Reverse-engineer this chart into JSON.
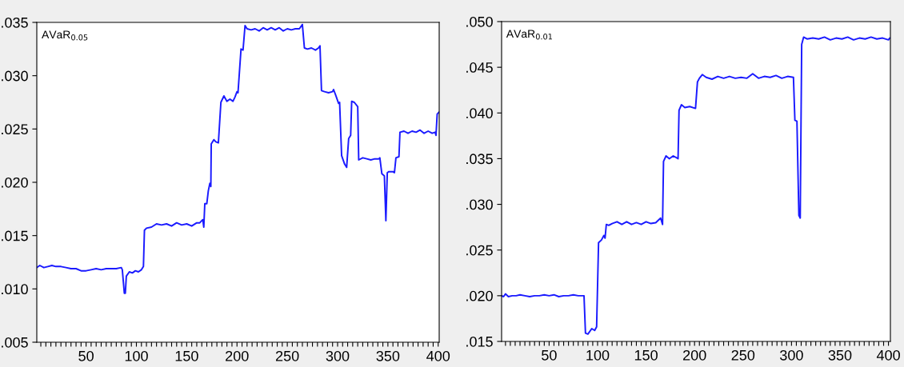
{
  "chart_data": [
    {
      "type": "line",
      "annotations": [
        "AVaR$_{0.05}$"
      ],
      "xlim": [
        1,
        401
      ],
      "ylim": [
        0.005,
        0.035
      ],
      "yticks": [
        {
          "value": 0.005,
          "label": ".005"
        },
        {
          "value": 0.01,
          "label": ".010"
        },
        {
          "value": 0.015,
          "label": ".015"
        },
        {
          "value": 0.02,
          "label": ".020"
        },
        {
          "value": 0.025,
          "label": ".025"
        },
        {
          "value": 0.03,
          "label": ".030"
        },
        {
          "value": 0.035,
          "label": ".035"
        }
      ],
      "xticks": [
        {
          "value": 5,
          "label": null
        },
        {
          "value": 10,
          "label": null
        },
        {
          "value": 15,
          "label": null
        },
        {
          "value": 20,
          "label": null
        },
        {
          "value": 25,
          "label": null
        },
        {
          "value": 30,
          "label": null
        },
        {
          "value": 35,
          "label": null
        },
        {
          "value": 40,
          "label": null
        },
        {
          "value": 45,
          "label": null
        },
        50,
        {
          "value": 55,
          "label": null
        },
        {
          "value": 60,
          "label": null
        },
        {
          "value": 65,
          "label": null
        },
        {
          "value": 70,
          "label": null
        },
        {
          "value": 75,
          "label": null
        },
        {
          "value": 80,
          "label": null
        },
        {
          "value": 85,
          "label": null
        },
        {
          "value": 90,
          "label": null
        },
        {
          "value": 95,
          "label": null
        },
        100,
        {
          "value": 105,
          "label": null
        },
        {
          "value": 110,
          "label": null
        },
        {
          "value": 115,
          "label": null
        },
        {
          "value": 120,
          "label": null
        },
        {
          "value": 125,
          "label": null
        },
        {
          "value": 130,
          "label": null
        },
        {
          "value": 135,
          "label": null
        },
        {
          "value": 140,
          "label": null
        },
        {
          "value": 145,
          "label": null
        },
        150,
        {
          "value": 155,
          "label": null
        },
        {
          "value": 160,
          "label": null
        },
        {
          "value": 165,
          "label": null
        },
        {
          "value": 170,
          "label": null
        },
        {
          "value": 175,
          "label": null
        },
        {
          "value": 180,
          "label": null
        },
        {
          "value": 185,
          "label": null
        },
        {
          "value": 190,
          "label": null
        },
        {
          "value": 195,
          "label": null
        },
        200,
        {
          "value": 205,
          "label": null
        },
        {
          "value": 210,
          "label": null
        },
        {
          "value": 215,
          "label": null
        },
        {
          "value": 220,
          "label": null
        },
        {
          "value": 225,
          "label": null
        },
        {
          "value": 230,
          "label": null
        },
        {
          "value": 235,
          "label": null
        },
        {
          "value": 240,
          "label": null
        },
        {
          "value": 245,
          "label": null
        },
        250,
        {
          "value": 255,
          "label": null
        },
        {
          "value": 260,
          "label": null
        },
        {
          "value": 265,
          "label": null
        },
        {
          "value": 270,
          "label": null
        },
        {
          "value": 275,
          "label": null
        },
        {
          "value": 280,
          "label": null
        },
        {
          "value": 285,
          "label": null
        },
        {
          "value": 290,
          "label": null
        },
        {
          "value": 295,
          "label": null
        },
        300,
        {
          "value": 305,
          "label": null
        },
        {
          "value": 310,
          "label": null
        },
        {
          "value": 315,
          "label": null
        },
        {
          "value": 320,
          "label": null
        },
        {
          "value": 325,
          "label": null
        },
        {
          "value": 330,
          "label": null
        },
        {
          "value": 335,
          "label": null
        },
        {
          "value": 340,
          "label": null
        },
        {
          "value": 345,
          "label": null
        },
        350,
        {
          "value": 355,
          "label": null
        },
        {
          "value": 360,
          "label": null
        },
        {
          "value": 365,
          "label": null
        },
        {
          "value": 370,
          "label": null
        },
        {
          "value": 375,
          "label": null
        },
        {
          "value": 380,
          "label": null
        },
        {
          "value": 385,
          "label": null
        },
        {
          "value": 390,
          "label": null
        },
        {
          "value": 395,
          "label": null
        },
        400
      ],
      "grid": false,
      "legend": false,
      "marker": "none",
      "line_style": "solid",
      "series": [
        {
          "color": "#1a1aff",
          "x": [
            1,
            4,
            8,
            12,
            16,
            20,
            25,
            30,
            35,
            40,
            45,
            50,
            55,
            60,
            65,
            70,
            75,
            80,
            85,
            86,
            88,
            89,
            90,
            93,
            96,
            99,
            102,
            105,
            107,
            108,
            110,
            115,
            120,
            125,
            130,
            135,
            140,
            145,
            150,
            155,
            160,
            163,
            166,
            167,
            168,
            170,
            171.5,
            173,
            174,
            174.4,
            177,
            179,
            181.5,
            184,
            187,
            190,
            193,
            196,
            198,
            200,
            201,
            204,
            206,
            208,
            210,
            214,
            218,
            222,
            226,
            230,
            234,
            238,
            242,
            246,
            250,
            254,
            258,
            262,
            265,
            267,
            270,
            274,
            278,
            281,
            282.5,
            284,
            287,
            291,
            295,
            296,
            298,
            301,
            302,
            304,
            307,
            309,
            311,
            313,
            314,
            316.6,
            320,
            321,
            325,
            329,
            333,
            337,
            341,
            342,
            344,
            346.5,
            348,
            349.4,
            351,
            355,
            356.5,
            358,
            361,
            362,
            366,
            370,
            374,
            378,
            382,
            386,
            390,
            394,
            397,
            397.8,
            399,
            401
          ],
          "values": [
            0.012,
            0.0122,
            0.012,
            0.0121,
            0.0122,
            0.0121,
            0.0121,
            0.012,
            0.0119,
            0.0119,
            0.0117,
            0.0117,
            0.0118,
            0.0119,
            0.0118,
            0.0119,
            0.0119,
            0.0119,
            0.012,
            0.0118,
            0.0096,
            0.0096,
            0.0112,
            0.0116,
            0.0115,
            0.0117,
            0.0116,
            0.0118,
            0.0121,
            0.0155,
            0.0157,
            0.0158,
            0.0161,
            0.016,
            0.0161,
            0.0159,
            0.0162,
            0.016,
            0.0161,
            0.0159,
            0.0162,
            0.0162,
            0.0165,
            0.0158,
            0.018,
            0.018,
            0.0192,
            0.0199,
            0.0196,
            0.0236,
            0.024,
            0.0238,
            0.0237,
            0.0275,
            0.0281,
            0.0276,
            0.0278,
            0.0276,
            0.028,
            0.0285,
            0.0284,
            0.0325,
            0.0324,
            0.0347,
            0.0344,
            0.0343,
            0.0344,
            0.0342,
            0.0345,
            0.0343,
            0.0345,
            0.0343,
            0.0345,
            0.0342,
            0.0344,
            0.0343,
            0.0344,
            0.0344,
            0.0348,
            0.0326,
            0.0325,
            0.0326,
            0.0324,
            0.0326,
            0.0328,
            0.0286,
            0.0285,
            0.0284,
            0.0285,
            0.0287,
            0.0282,
            0.0274,
            0.0275,
            0.0225,
            0.0217,
            0.0214,
            0.0241,
            0.0244,
            0.0276,
            0.0275,
            0.0271,
            0.0221,
            0.0223,
            0.0222,
            0.0221,
            0.0222,
            0.0222,
            0.0223,
            0.0208,
            0.0206,
            0.0164,
            0.0209,
            0.021,
            0.021,
            0.0209,
            0.0223,
            0.0224,
            0.0247,
            0.0248,
            0.0246,
            0.0248,
            0.0247,
            0.0249,
            0.0246,
            0.0248,
            0.0246,
            0.0247,
            0.0244,
            0.0264,
            0.0266
          ]
        }
      ]
    },
    {
      "type": "line",
      "annotations": [
        "AVaR$_{0.01}$"
      ],
      "xlim": [
        1,
        402
      ],
      "ylim": [
        0.015,
        0.05
      ],
      "yticks": [
        {
          "value": 0.015,
          "label": ".015"
        },
        {
          "value": 0.02,
          "label": ".020"
        },
        {
          "value": 0.025,
          "label": ".025"
        },
        {
          "value": 0.03,
          "label": ".030"
        },
        {
          "value": 0.035,
          "label": ".035"
        },
        {
          "value": 0.04,
          "label": ".040"
        },
        {
          "value": 0.045,
          "label": ".045"
        },
        {
          "value": 0.05,
          "label": ".050"
        }
      ],
      "xticks": [
        {
          "value": 5,
          "label": null
        },
        {
          "value": 10,
          "label": null
        },
        {
          "value": 15,
          "label": null
        },
        {
          "value": 20,
          "label": null
        },
        {
          "value": 25,
          "label": null
        },
        {
          "value": 30,
          "label": null
        },
        {
          "value": 35,
          "label": null
        },
        {
          "value": 40,
          "label": null
        },
        {
          "value": 45,
          "label": null
        },
        50,
        {
          "value": 55,
          "label": null
        },
        {
          "value": 60,
          "label": null
        },
        {
          "value": 65,
          "label": null
        },
        {
          "value": 70,
          "label": null
        },
        {
          "value": 75,
          "label": null
        },
        {
          "value": 80,
          "label": null
        },
        {
          "value": 85,
          "label": null
        },
        {
          "value": 90,
          "label": null
        },
        {
          "value": 95,
          "label": null
        },
        100,
        {
          "value": 105,
          "label": null
        },
        {
          "value": 110,
          "label": null
        },
        {
          "value": 115,
          "label": null
        },
        {
          "value": 120,
          "label": null
        },
        {
          "value": 125,
          "label": null
        },
        {
          "value": 130,
          "label": null
        },
        {
          "value": 135,
          "label": null
        },
        {
          "value": 140,
          "label": null
        },
        {
          "value": 145,
          "label": null
        },
        150,
        {
          "value": 155,
          "label": null
        },
        {
          "value": 160,
          "label": null
        },
        {
          "value": 165,
          "label": null
        },
        {
          "value": 170,
          "label": null
        },
        {
          "value": 175,
          "label": null
        },
        {
          "value": 180,
          "label": null
        },
        {
          "value": 185,
          "label": null
        },
        {
          "value": 190,
          "label": null
        },
        {
          "value": 195,
          "label": null
        },
        200,
        {
          "value": 205,
          "label": null
        },
        {
          "value": 210,
          "label": null
        },
        {
          "value": 215,
          "label": null
        },
        {
          "value": 220,
          "label": null
        },
        {
          "value": 225,
          "label": null
        },
        {
          "value": 230,
          "label": null
        },
        {
          "value": 235,
          "label": null
        },
        {
          "value": 240,
          "label": null
        },
        {
          "value": 245,
          "label": null
        },
        250,
        {
          "value": 255,
          "label": null
        },
        {
          "value": 260,
          "label": null
        },
        {
          "value": 265,
          "label": null
        },
        {
          "value": 270,
          "label": null
        },
        {
          "value": 275,
          "label": null
        },
        {
          "value": 280,
          "label": null
        },
        {
          "value": 285,
          "label": null
        },
        {
          "value": 290,
          "label": null
        },
        {
          "value": 295,
          "label": null
        },
        300,
        {
          "value": 305,
          "label": null
        },
        {
          "value": 310,
          "label": null
        },
        {
          "value": 315,
          "label": null
        },
        {
          "value": 320,
          "label": null
        },
        {
          "value": 325,
          "label": null
        },
        {
          "value": 330,
          "label": null
        },
        {
          "value": 335,
          "label": null
        },
        {
          "value": 340,
          "label": null
        },
        {
          "value": 345,
          "label": null
        },
        350,
        {
          "value": 355,
          "label": null
        },
        {
          "value": 360,
          "label": null
        },
        {
          "value": 365,
          "label": null
        },
        {
          "value": 370,
          "label": null
        },
        {
          "value": 375,
          "label": null
        },
        {
          "value": 380,
          "label": null
        },
        {
          "value": 385,
          "label": null
        },
        {
          "value": 390,
          "label": null
        },
        {
          "value": 395,
          "label": null
        },
        400
      ],
      "grid": false,
      "legend": false,
      "marker": "none",
      "line_style": "solid",
      "series": [
        {
          "color": "#1a1aff",
          "x": [
            1,
            3,
            5,
            8,
            12,
            16,
            20,
            25,
            30,
            35,
            40,
            45,
            50,
            55,
            60,
            65,
            70,
            75,
            80,
            86,
            87.5,
            90,
            94,
            97,
            99,
            101,
            104,
            106.5,
            107.7,
            109,
            111.5,
            115,
            120,
            125,
            130,
            135,
            140,
            145,
            150,
            155,
            160,
            165,
            167,
            168,
            170.6,
            174,
            178,
            183,
            184,
            186.5,
            190,
            195,
            201,
            203,
            205,
            208,
            212,
            218,
            224,
            230,
            236,
            242,
            248,
            254,
            260,
            266,
            272,
            278,
            284,
            290,
            296,
            302,
            303.5,
            305.6,
            307.6,
            309,
            310.5,
            312.5,
            316,
            322,
            328,
            334,
            340,
            346,
            352,
            358,
            364,
            370,
            376,
            382,
            388,
            394,
            400,
            401.4
          ],
          "values": [
            0.02,
            0.0199,
            0.0202,
            0.0199,
            0.02,
            0.02,
            0.0201,
            0.02,
            0.0199,
            0.02,
            0.02,
            0.0201,
            0.02,
            0.0201,
            0.0199,
            0.02,
            0.02,
            0.0201,
            0.02,
            0.02,
            0.0159,
            0.0158,
            0.0164,
            0.0162,
            0.0166,
            0.0258,
            0.0261,
            0.0266,
            0.0263,
            0.0278,
            0.0277,
            0.0279,
            0.0281,
            0.0278,
            0.0281,
            0.0278,
            0.028,
            0.0278,
            0.0281,
            0.0279,
            0.028,
            0.0285,
            0.0278,
            0.0347,
            0.0353,
            0.035,
            0.0353,
            0.035,
            0.0403,
            0.0409,
            0.0406,
            0.0407,
            0.0405,
            0.0434,
            0.0438,
            0.0442,
            0.0439,
            0.0437,
            0.044,
            0.0438,
            0.044,
            0.0438,
            0.0439,
            0.0438,
            0.0443,
            0.0438,
            0.044,
            0.0439,
            0.0441,
            0.0438,
            0.044,
            0.0439,
            0.0392,
            0.0391,
            0.0288,
            0.0285,
            0.0475,
            0.0483,
            0.0481,
            0.0482,
            0.0481,
            0.0483,
            0.048,
            0.0482,
            0.0481,
            0.0483,
            0.048,
            0.0482,
            0.0481,
            0.0483,
            0.0481,
            0.0482,
            0.048,
            0.0482
          ]
        }
      ]
    }
  ]
}
